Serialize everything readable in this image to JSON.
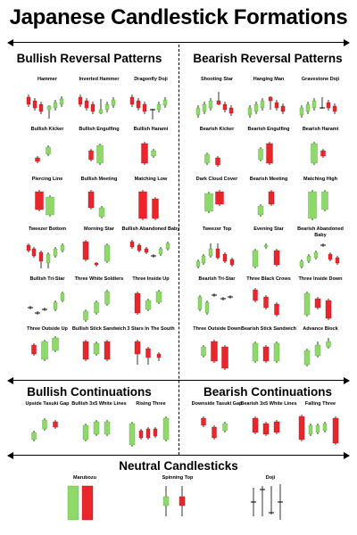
{
  "title": "Japanese Candlestick Formations",
  "sections": {
    "bullish_reversal": "Bullish Reversal Patterns",
    "bearish_reversal": "Bearish Reversal Patterns",
    "bullish_cont": "Bullish Continuations",
    "bearish_cont": "Bearish Continuations",
    "neutral": "Neutral Candlesticks"
  },
  "colors": {
    "bull": "#8fd86a",
    "bear": "#e8262b",
    "line": "#000000"
  },
  "patterns": {
    "bullish_reversal": [
      "Hammer",
      "Inverted Hammer",
      "Dragonfly Doji",
      "Bullish Kicker",
      "Bullish Engulfing",
      "Bullish Harami",
      "Piercing Line",
      "Bullish Meeting",
      "Matching Low",
      "Tweezer Bottom",
      "Morning Star",
      "Bullish Abandoned Baby",
      "Bullish Tri-Star",
      "Three White Soldiers",
      "Three Inside Up",
      "Three Outside Up",
      "Bullish Stick Sandwich",
      "3 Stars In The South"
    ],
    "bearish_reversal": [
      "Shooting Star",
      "Hanging Man",
      "Gravestone Doji",
      "Bearish Kicker",
      "Bearish Engulfing",
      "Bearish Harami",
      "Dark Cloud Cover",
      "Bearish Meeting",
      "Matching High",
      "Tweezer Top",
      "Evening Star",
      "Bearish Abandoned Baby",
      "Bearish Tri-Star",
      "Three Black Crows",
      "Three Inside Down",
      "Three Outside Down",
      "Bearish Stick Sandwich",
      "Advance Block"
    ],
    "bullish_cont": [
      "Upside Tasuki Gap",
      "Bullish 3x5 White Lines",
      "Rising Three"
    ],
    "bearish_cont": [
      "Downside Tasuki Gap",
      "Bearish 3x5 White Lines",
      "Falling Three"
    ],
    "neutral": [
      "Marubozu",
      "Spinning Top",
      "Doji"
    ]
  }
}
